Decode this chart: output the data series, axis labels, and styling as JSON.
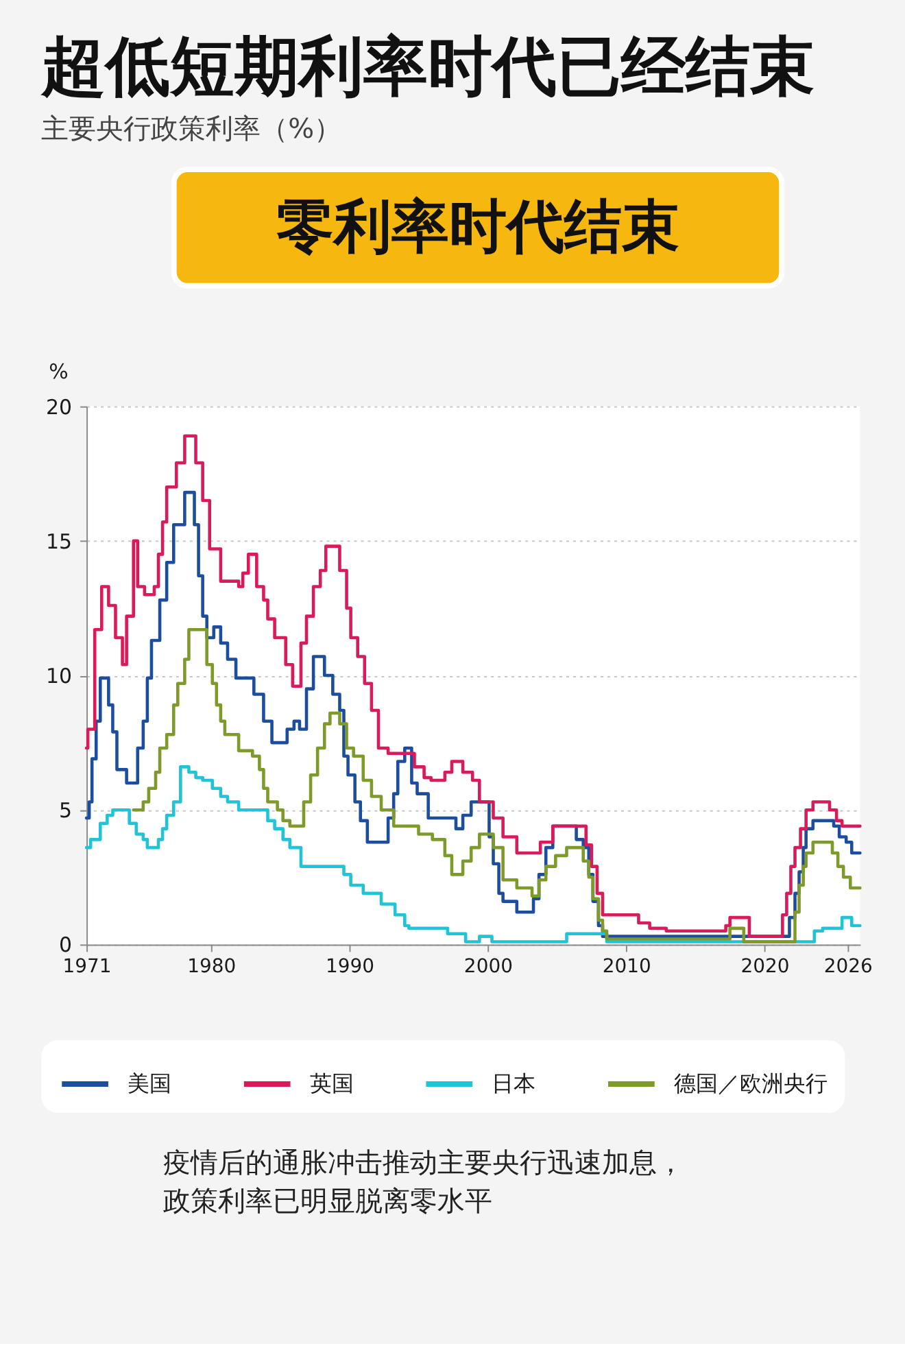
{
  "chart_data": {
    "type": "step",
    "title": "超低短期利率时代已经结束",
    "subtitle": "主要央行政策利率（%）",
    "ylabel": "%",
    "annotations": [
      "零利率时代结束",
      "疫情后的通胀冲击推动主要央行迅速加息，政策利率已明显脱离零水平"
    ],
    "xlim": [
      1971,
      2026.9
    ],
    "xticks": [
      1971,
      1980,
      1990,
      2000,
      2010,
      2020,
      2026
    ],
    "ylim": [
      0,
      20
    ],
    "yticks": [
      0,
      5,
      10,
      15,
      20
    ],
    "grid": "y",
    "legend": "bottom",
    "series": [
      {
        "name": "美国",
        "color": "#1d4e9e",
        "x": [
          1971.0,
          1971.2,
          1971.4,
          1971.7,
          1972.0,
          1972.6,
          1972.9,
          1973.2,
          1973.9,
          1974.7,
          1975.1,
          1975.4,
          1975.7,
          1976.3,
          1976.8,
          1977.3,
          1978.1,
          1978.8,
          1979.1,
          1979.4,
          1979.7,
          1980.2,
          1980.7,
          1981.2,
          1981.8,
          1983.1,
          1983.8,
          1984.4,
          1985.5,
          1986.0,
          1986.4,
          1986.9,
          1987.4,
          1988.2,
          1988.8,
          1989.3,
          1989.6,
          1989.9,
          1990.4,
          1990.8,
          1991.3,
          1992.8,
          1993.2,
          1993.5,
          1994.0,
          1994.5,
          1994.9,
          1995.7,
          1997.7,
          1998.2,
          1998.8,
          2000.1,
          2000.4,
          2000.8,
          2001.1,
          2002.1,
          2003.3,
          2003.7,
          2004.2,
          2004.7,
          2006.4,
          2006.9,
          2007.3,
          2007.6,
          2008.0,
          2008.3,
          2021.8,
          2022.2,
          2022.5,
          2022.8,
          2023.0,
          2023.5,
          2025.0,
          2025.4,
          2025.9,
          2026.3,
          2026.9
        ],
        "values": [
          4.7,
          5.3,
          6.9,
          8.3,
          9.9,
          8.9,
          7.9,
          6.5,
          6.0,
          7.3,
          8.3,
          9.9,
          11.3,
          12.8,
          14.2,
          15.6,
          16.8,
          15.6,
          13.7,
          12.2,
          11.4,
          11.8,
          11.2,
          10.6,
          9.9,
          9.3,
          8.3,
          7.5,
          8.0,
          8.3,
          8.0,
          9.5,
          10.7,
          10.0,
          9.3,
          8.7,
          7.0,
          6.3,
          5.3,
          4.6,
          3.8,
          4.7,
          5.6,
          6.8,
          7.3,
          6.0,
          5.6,
          4.7,
          4.3,
          4.8,
          5.3,
          4.0,
          3.0,
          1.9,
          1.6,
          1.2,
          1.7,
          2.6,
          3.6,
          4.4,
          3.9,
          3.6,
          2.6,
          1.6,
          0.7,
          0.3,
          1.0,
          1.9,
          2.7,
          3.6,
          4.3,
          4.6,
          4.4,
          4.0,
          3.8,
          3.4,
          3.4
        ]
      },
      {
        "name": "英国",
        "color": "#d81b5a",
        "x": [
          1971.0,
          1971.1,
          1971.6,
          1972.1,
          1972.6,
          1973.1,
          1973.6,
          1973.9,
          1974.4,
          1974.7,
          1975.2,
          1975.9,
          1976.2,
          1976.5,
          1976.8,
          1977.5,
          1978.1,
          1978.9,
          1979.4,
          1979.9,
          1980.7,
          1982.0,
          1982.3,
          1982.7,
          1983.3,
          1983.8,
          1984.1,
          1984.6,
          1985.4,
          1985.9,
          1986.5,
          1986.9,
          1987.4,
          1987.9,
          1988.3,
          1989.3,
          1989.8,
          1990.1,
          1990.6,
          1991.1,
          1991.6,
          1992.1,
          1992.8,
          1994.7,
          1995.4,
          1995.9,
          1996.9,
          1997.4,
          1998.2,
          1998.9,
          1999.4,
          2000.4,
          2001.1,
          2002.1,
          2003.8,
          2004.7,
          2007.1,
          2007.5,
          2007.9,
          2008.3,
          2010.9,
          2011.7,
          2012.9,
          2017.2,
          2017.5,
          2018.9,
          2021.3,
          2021.6,
          2021.9,
          2022.2,
          2022.6,
          2023.0,
          2023.5,
          2024.7,
          2025.2,
          2025.6,
          2026.9
        ],
        "values": [
          7.3,
          8.0,
          11.7,
          13.3,
          12.6,
          11.4,
          10.4,
          12.2,
          15.0,
          13.3,
          13.0,
          13.3,
          14.5,
          15.7,
          17.0,
          17.9,
          18.9,
          17.9,
          16.5,
          14.7,
          13.5,
          13.3,
          13.8,
          14.5,
          13.3,
          12.8,
          12.1,
          11.4,
          10.4,
          9.6,
          11.2,
          12.2,
          13.3,
          13.9,
          14.8,
          13.9,
          12.5,
          11.4,
          10.7,
          9.7,
          8.7,
          7.3,
          7.1,
          6.6,
          6.2,
          6.1,
          6.4,
          6.8,
          6.4,
          6.1,
          5.3,
          4.7,
          4.0,
          3.4,
          3.8,
          4.4,
          3.7,
          2.9,
          1.9,
          1.1,
          0.8,
          0.6,
          0.5,
          0.7,
          1.0,
          0.3,
          1.1,
          1.9,
          2.9,
          3.6,
          4.3,
          5.0,
          5.3,
          5.0,
          4.6,
          4.4,
          4.4
        ]
      },
      {
        "name": "日本",
        "color": "#22c3d6",
        "x": [
          1971.0,
          1971.3,
          1972.0,
          1972.5,
          1972.9,
          1974.1,
          1974.6,
          1975.1,
          1975.4,
          1976.2,
          1976.5,
          1976.8,
          1977.3,
          1977.8,
          1978.4,
          1978.9,
          1979.4,
          1980.1,
          1980.7,
          1981.2,
          1982.0,
          1984.1,
          1984.6,
          1985.2,
          1985.7,
          1986.5,
          1989.6,
          1990.1,
          1991.0,
          1992.3,
          1993.3,
          1994.0,
          1994.3,
          1997.1,
          1998.4,
          1999.4,
          2000.3,
          2005.7,
          2008.6,
          2023.6,
          2024.2,
          2025.6,
          2026.3,
          2026.9
        ],
        "values": [
          3.6,
          3.9,
          4.5,
          4.8,
          5.0,
          4.5,
          4.1,
          3.9,
          3.6,
          3.9,
          4.3,
          4.8,
          5.3,
          6.6,
          6.4,
          6.2,
          6.1,
          5.8,
          5.5,
          5.3,
          5.0,
          4.6,
          4.3,
          3.9,
          3.6,
          2.9,
          2.6,
          2.2,
          1.9,
          1.5,
          1.1,
          0.7,
          0.6,
          0.4,
          0.1,
          0.3,
          0.1,
          0.4,
          0.1,
          0.5,
          0.6,
          1.0,
          0.7,
          0.7
        ]
      },
      {
        "name": "德国／欧洲央行",
        "color": "#7d9a2a",
        "x": [
          1974.4,
          1975.1,
          1975.5,
          1976.0,
          1976.3,
          1976.8,
          1977.3,
          1977.6,
          1978.1,
          1978.4,
          1979.7,
          1980.1,
          1980.4,
          1980.7,
          1981.0,
          1982.0,
          1983.0,
          1983.5,
          1983.8,
          1984.1,
          1984.8,
          1985.2,
          1985.7,
          1986.7,
          1987.2,
          1987.7,
          1988.2,
          1988.6,
          1989.3,
          1989.8,
          1990.3,
          1991.0,
          1991.6,
          1992.3,
          1993.2,
          1995.0,
          1996.0,
          1996.9,
          1997.4,
          1998.2,
          1998.8,
          1999.4,
          2000.4,
          2001.1,
          2002.1,
          2003.2,
          2003.7,
          2004.2,
          2004.9,
          2005.7,
          2006.9,
          2007.3,
          2007.6,
          2008.0,
          2008.3,
          2008.6,
          2017.5,
          2018.5,
          2022.2,
          2022.5,
          2022.8,
          2023.0,
          2023.5,
          2024.9,
          2025.3,
          2025.7,
          2026.2,
          2026.9
        ],
        "values": [
          5.0,
          5.3,
          5.8,
          6.4,
          7.3,
          7.8,
          8.9,
          9.7,
          10.6,
          11.7,
          10.4,
          9.7,
          8.9,
          8.3,
          7.8,
          7.2,
          7.0,
          6.5,
          5.8,
          5.3,
          5.0,
          4.6,
          4.4,
          5.3,
          6.3,
          7.3,
          8.2,
          8.6,
          8.2,
          7.3,
          7.0,
          6.1,
          5.5,
          5.0,
          4.4,
          4.1,
          3.9,
          3.3,
          2.6,
          3.1,
          3.6,
          4.1,
          3.6,
          2.4,
          2.1,
          1.8,
          2.4,
          2.9,
          3.3,
          3.6,
          3.1,
          2.5,
          1.7,
          0.9,
          0.5,
          0.2,
          0.6,
          0.1,
          1.2,
          2.2,
          2.9,
          3.4,
          3.8,
          3.4,
          2.9,
          2.5,
          2.1,
          2.1
        ]
      }
    ]
  }
}
